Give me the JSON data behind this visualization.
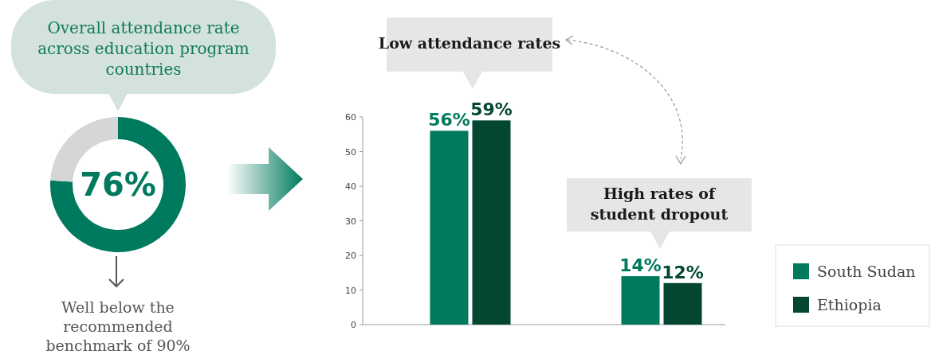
{
  "chart_data": [
    {
      "type": "donut",
      "title": "Overall attendance rate across education program countries",
      "categories": [
        null,
        null
      ],
      "values": [
        76,
        24
      ],
      "colors": [
        "#007a5e",
        "#d5d6d6"
      ],
      "value_labels": [
        "76%",
        null
      ],
      "annotations": [
        "Well below the recommended benchmark of 90%"
      ]
    },
    {
      "type": "bar",
      "categories": [
        null,
        null
      ],
      "series": [
        {
          "name": "South Sudan",
          "color": "#007a5e",
          "values": [
            56,
            14
          ],
          "value_labels": [
            "56%",
            "14%"
          ]
        },
        {
          "name": "Ethiopia",
          "color": "#034733",
          "values": [
            59,
            12
          ],
          "value_labels": [
            "59%",
            "12%"
          ]
        }
      ],
      "ylim": [
        0,
        60
      ],
      "yticks": [
        0,
        10,
        20,
        30,
        40,
        50,
        60
      ],
      "legend": "bottom right",
      "annotations": [
        "Low attendance rates",
        "High rates of student dropout"
      ]
    }
  ]
}
